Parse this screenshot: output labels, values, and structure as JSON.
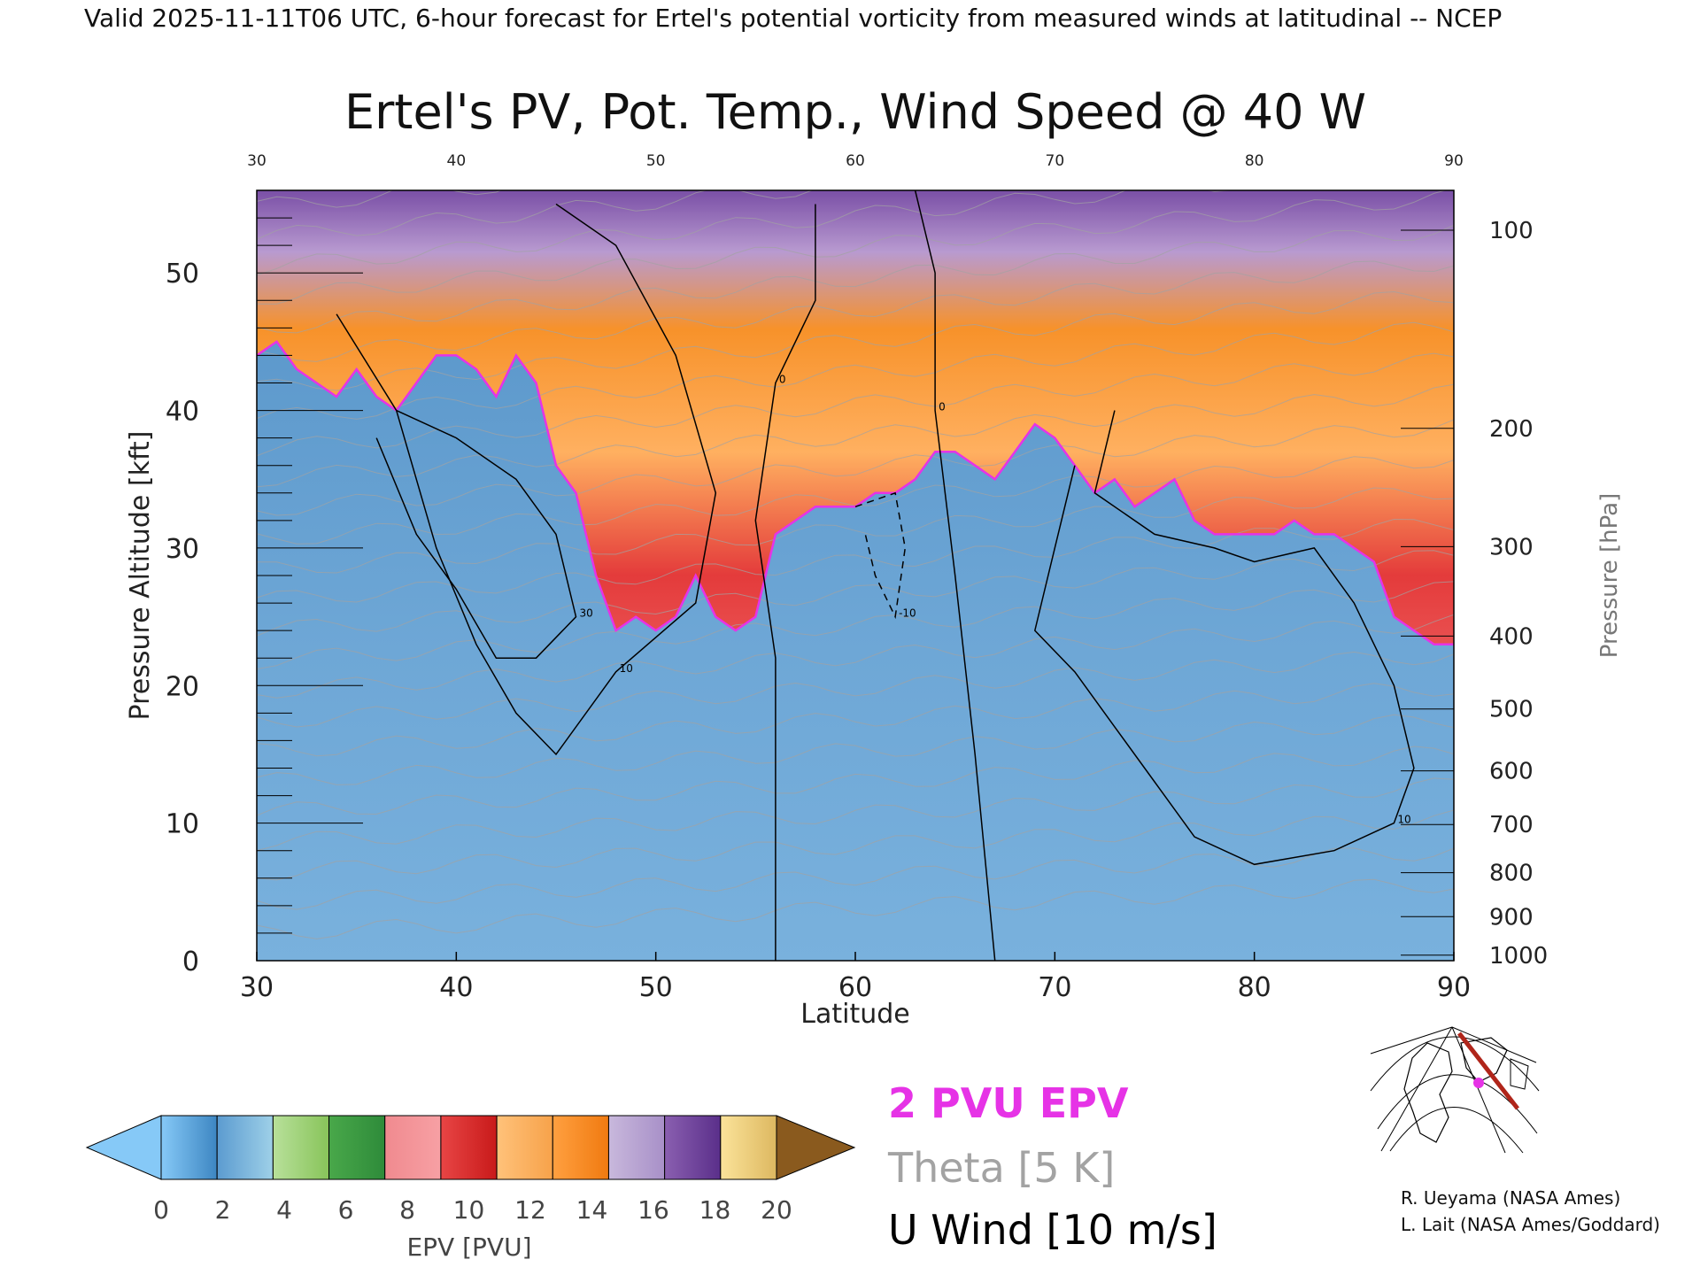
{
  "header": "Valid 2025-11-11T06 UTC, 6-hour forecast for Ertel's potential vorticity from measured winds at latitudinal -- NCEP",
  "chart_data": {
    "type": "heatmap",
    "title": "Ertel's PV, Pot. Temp., Wind Speed @ 40 W",
    "xlabel": "Latitude",
    "ylabel_left": "Pressure Altitude [kft]",
    "ylabel_right": "Pressure [hPa]",
    "xlim": [
      30,
      90
    ],
    "ylim": [
      0,
      56
    ],
    "x_ticks": [
      30,
      40,
      50,
      60,
      70,
      80,
      90
    ],
    "y_ticks": [
      0,
      10,
      20,
      30,
      40,
      50
    ],
    "pressure_ticks": [
      {
        "label": "100",
        "kft": 53.1
      },
      {
        "label": "200",
        "kft": 38.7
      },
      {
        "label": "300",
        "kft": 30.1
      },
      {
        "label": "400",
        "kft": 23.6
      },
      {
        "label": "500",
        "kft": 18.3
      },
      {
        "label": "600",
        "kft": 13.8
      },
      {
        "label": "700",
        "kft": 9.9
      },
      {
        "label": "800",
        "kft": 6.4
      },
      {
        "label": "900",
        "kft": 3.2
      },
      {
        "label": "1000",
        "kft": 0.4
      }
    ],
    "tropopause_2pvu_kft": [
      [
        30,
        44
      ],
      [
        31,
        45
      ],
      [
        32,
        43
      ],
      [
        33,
        42
      ],
      [
        34,
        41
      ],
      [
        35,
        43
      ],
      [
        36,
        41
      ],
      [
        37,
        40
      ],
      [
        38,
        42
      ],
      [
        39,
        44
      ],
      [
        40,
        44
      ],
      [
        41,
        43
      ],
      [
        42,
        41
      ],
      [
        43,
        44
      ],
      [
        44,
        42
      ],
      [
        45,
        36
      ],
      [
        46,
        34
      ],
      [
        47,
        28
      ],
      [
        48,
        24
      ],
      [
        49,
        25
      ],
      [
        50,
        24
      ],
      [
        51,
        25
      ],
      [
        52,
        28
      ],
      [
        53,
        25
      ],
      [
        54,
        24
      ],
      [
        55,
        25
      ],
      [
        56,
        31
      ],
      [
        57,
        32
      ],
      [
        58,
        33
      ],
      [
        59,
        33
      ],
      [
        60,
        33
      ],
      [
        61,
        34
      ],
      [
        62,
        34
      ],
      [
        63,
        35
      ],
      [
        64,
        37
      ],
      [
        65,
        37
      ],
      [
        66,
        36
      ],
      [
        67,
        35
      ],
      [
        68,
        37
      ],
      [
        69,
        39
      ],
      [
        70,
        38
      ],
      [
        71,
        36
      ],
      [
        72,
        34
      ],
      [
        73,
        35
      ],
      [
        74,
        33
      ],
      [
        75,
        34
      ],
      [
        76,
        35
      ],
      [
        77,
        32
      ],
      [
        78,
        31
      ],
      [
        79,
        31
      ],
      [
        80,
        31
      ],
      [
        81,
        31
      ],
      [
        82,
        32
      ],
      [
        83,
        31
      ],
      [
        84,
        31
      ],
      [
        85,
        30
      ],
      [
        86,
        29
      ],
      [
        87,
        25
      ],
      [
        88,
        24
      ],
      [
        89,
        23
      ],
      [
        90,
        23
      ]
    ],
    "u_wind_contours": [
      {
        "level": 30,
        "points": [
          [
            36,
            38
          ],
          [
            38,
            31
          ],
          [
            40,
            27
          ],
          [
            42,
            22
          ],
          [
            44,
            22
          ],
          [
            46,
            25
          ],
          [
            45,
            31
          ],
          [
            43,
            35
          ],
          [
            40,
            38
          ],
          [
            37,
            40
          ]
        ]
      },
      {
        "level": 10,
        "points": [
          [
            34,
            47
          ],
          [
            37,
            40
          ],
          [
            39,
            30
          ],
          [
            41,
            23
          ],
          [
            43,
            18
          ],
          [
            45,
            15
          ],
          [
            48,
            21
          ],
          [
            52,
            26
          ],
          [
            53,
            34
          ],
          [
            51,
            44
          ],
          [
            48,
            52
          ],
          [
            45,
            55
          ]
        ]
      },
      {
        "level": 10,
        "points": [
          [
            73,
            40
          ],
          [
            72,
            34
          ],
          [
            75,
            31
          ],
          [
            78,
            30
          ],
          [
            80,
            29
          ],
          [
            83,
            30
          ],
          [
            85,
            26
          ],
          [
            87,
            20
          ],
          [
            88,
            14
          ],
          [
            87,
            10
          ],
          [
            84,
            8
          ],
          [
            80,
            7
          ],
          [
            77,
            9
          ],
          [
            75,
            13
          ],
          [
            73,
            17
          ],
          [
            71,
            21
          ],
          [
            69,
            24
          ],
          [
            70,
            30
          ],
          [
            71,
            36
          ]
        ]
      },
      {
        "level": 0,
        "points": [
          [
            56,
            0
          ],
          [
            56,
            22
          ],
          [
            55,
            32
          ],
          [
            56,
            42
          ],
          [
            58,
            48
          ],
          [
            58,
            55
          ]
        ]
      },
      {
        "level": 0,
        "points": [
          [
            67,
            0
          ],
          [
            66,
            15
          ],
          [
            65,
            28
          ],
          [
            64,
            40
          ],
          [
            64,
            50
          ],
          [
            63,
            56
          ]
        ]
      },
      {
        "level": -10,
        "points": [
          [
            60,
            33
          ],
          [
            62,
            34
          ],
          [
            62.5,
            30
          ],
          [
            62,
            25
          ],
          [
            61,
            28
          ],
          [
            60.5,
            31
          ]
        ]
      }
    ],
    "colorbar": {
      "label": "EPV [PVU]",
      "tick_labels": [
        "0",
        "2",
        "4",
        "6",
        "8",
        "10",
        "12",
        "14",
        "16",
        "18",
        "20"
      ],
      "bins": [
        [
          "#86c9f7",
          "#3d86c2"
        ],
        [
          "#5b9bd0",
          "#9ed0e8"
        ],
        [
          "#b8e09a",
          "#88c45a"
        ],
        [
          "#49a84a",
          "#2e8b3a"
        ],
        [
          "#f08a8f",
          "#f7a0a4"
        ],
        [
          "#e84545",
          "#c81a1a"
        ],
        [
          "#ffc27a",
          "#f7a24a"
        ],
        [
          "#ffa040",
          "#f07a10"
        ],
        [
          "#c8b8dc",
          "#a890c8"
        ],
        [
          "#8a5fb0",
          "#5a2f8a"
        ],
        [
          "#fbe39a",
          "#ddb860"
        ]
      ],
      "under_color": "#86c9f7",
      "over_color": "#8a5a1e"
    },
    "legend": {
      "pv": "2 PVU EPV",
      "theta": "Theta [5 K]",
      "wind": "U Wind [10 m/s]"
    },
    "colors": {
      "pv_contour": "#e633e6",
      "theta": "#a3a3a3",
      "wind": "#000000",
      "troposphere": "#5f9ccf"
    }
  },
  "credits": {
    "line1": "R. Ueyama (NASA Ames)",
    "line2": "L. Lait (NASA Ames/Goddard)"
  }
}
